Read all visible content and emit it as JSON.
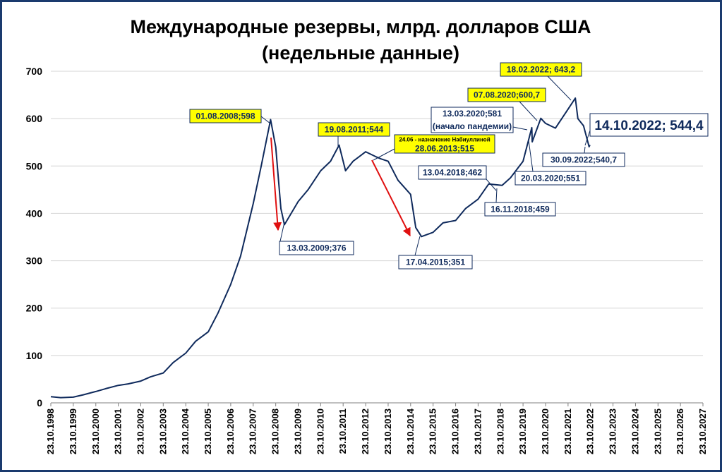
{
  "chart_data": {
    "type": "line",
    "title_line1": "Международные резервы, млрд. долларов США",
    "title_line2": "(недельные данные)",
    "ylim": [
      0,
      700
    ],
    "y_ticks": [
      "0",
      "100",
      "200",
      "300",
      "400",
      "500",
      "600",
      "700"
    ],
    "x_tick_labels": [
      "23.10.1998",
      "23.10.1999",
      "23.10.2000",
      "23.10.2001",
      "23.10.2002",
      "23.10.2003",
      "23.10.2004",
      "23.10.2005",
      "23.10.2006",
      "23.10.2007",
      "23.10.2008",
      "23.10.2009",
      "23.10.2010",
      "23.10.2011",
      "23.10.2012",
      "23.10.2013",
      "23.10.2014",
      "23.10.2015",
      "23.10.2016",
      "23.10.2017",
      "23.10.2018",
      "23.10.2019",
      "23.10.2020",
      "23.10.2021",
      "23.10.2022",
      "23.10.2023",
      "23.10.2024",
      "23.10.2025",
      "23.10.2026",
      "23.10.2027"
    ],
    "grid": "horizontal",
    "line_color": "#0f2a5c",
    "series": [
      {
        "x": [
          "1998-10-23",
          "1999-04-01",
          "1999-10-23",
          "2000-04-01",
          "2000-10-23",
          "2001-04-01",
          "2001-10-23",
          "2002-04-01",
          "2002-10-23",
          "2003-04-01",
          "2003-10-23",
          "2004-04-01",
          "2004-10-23",
          "2005-04-01",
          "2005-10-23",
          "2006-04-01",
          "2006-10-23",
          "2007-04-01",
          "2007-10-23",
          "2008-03-01",
          "2008-08-01",
          "2008-10-23",
          "2009-01-15",
          "2009-03-13",
          "2009-07-01",
          "2009-10-23",
          "2010-04-01",
          "2010-10-23",
          "2011-04-01",
          "2011-08-19",
          "2011-12-01",
          "2012-04-01",
          "2012-10-23",
          "2013-04-01",
          "2013-06-28",
          "2013-10-23",
          "2014-04-01",
          "2014-10-23",
          "2015-01-15",
          "2015-04-17",
          "2015-10-23",
          "2016-04-01",
          "2016-10-23",
          "2017-04-01",
          "2017-10-23",
          "2018-04-13",
          "2018-11-16",
          "2019-04-01",
          "2019-10-23",
          "2020-03-13",
          "2020-03-20",
          "2020-08-07",
          "2020-10-23",
          "2021-04-01",
          "2021-10-23",
          "2022-02-18",
          "2022-04-01",
          "2022-07-01",
          "2022-09-30",
          "2022-10-14"
        ],
        "y": [
          13,
          11,
          12,
          17,
          24,
          30,
          37,
          40,
          46,
          55,
          63,
          85,
          105,
          130,
          150,
          190,
          250,
          310,
          420,
          500,
          598,
          540,
          410,
          376,
          400,
          425,
          450,
          490,
          510,
          544,
          490,
          510,
          530,
          520,
          515,
          510,
          470,
          440,
          370,
          351,
          360,
          380,
          385,
          410,
          430,
          462,
          459,
          475,
          510,
          581,
          551,
          600.7,
          590,
          580,
          620,
          643.2,
          600,
          585,
          540.7,
          544.4
        ]
      }
    ]
  },
  "annotations": {
    "a2008": "01.08.2008;598",
    "a2009": "13.03.2009;376",
    "a2011": "19.08.2011;544",
    "a2013_note": "24.06 - назначение Набиуллиной",
    "a2013": "28.06.2013;515",
    "a2015": "17.04.2015;351",
    "a2018a": "13.04.2018;462",
    "a2018b": "16.11.2018;459",
    "a2020a_1": "13.03.2020;581",
    "a2020a_2": "(начало пандемии)",
    "a2020b": "20.03.2020;551",
    "a2020c": "07.08.2020;600,7",
    "a2022a": "18.02.2022; 643,2",
    "a2022b": "30.09.2022;540,7",
    "a2022c": "14.10.2022; 544,4"
  }
}
